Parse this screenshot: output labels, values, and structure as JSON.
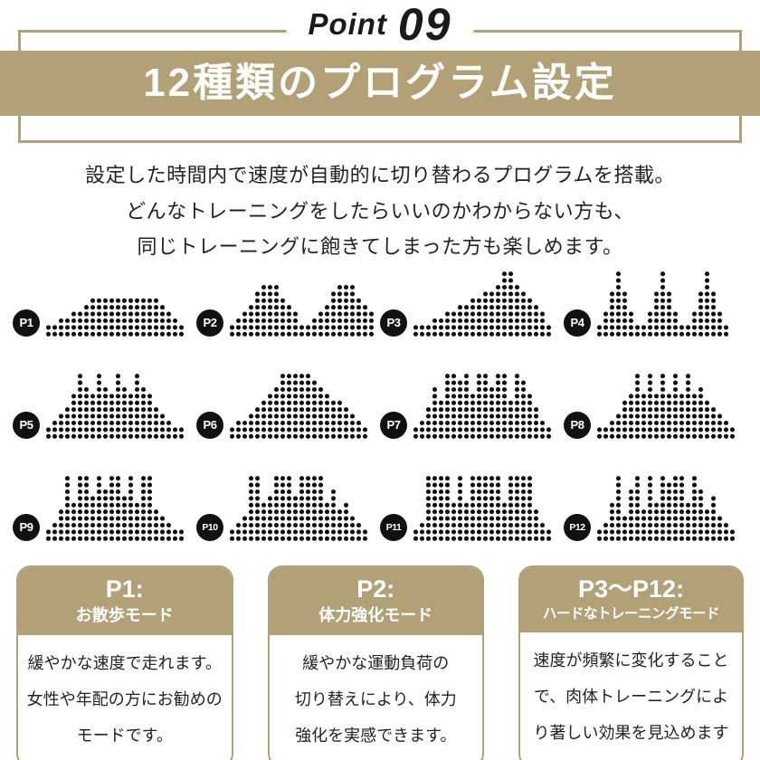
{
  "colors": {
    "accent": "#b2a177",
    "ink": "#111111"
  },
  "header": {
    "point_label": "Point",
    "point_number": "09",
    "banner_title": "12種類のプログラム設定"
  },
  "intro": {
    "lines": [
      "設定した時間内で速度が自動的に切り替わるプログラムを搭載。",
      "どんなトレーニングをしたらいいのかわからない方も、",
      "同じトレーニングに飽きてしまった方も楽しめます。"
    ]
  },
  "programs": [
    {
      "id": "P1",
      "heights": [
        2,
        2,
        3,
        3,
        4,
        4,
        5,
        6,
        6,
        6,
        6,
        6,
        6,
        6,
        6,
        6,
        6,
        6,
        5,
        4,
        3,
        2
      ]
    },
    {
      "id": "P2",
      "heights": [
        2,
        3,
        4,
        5,
        7,
        8,
        8,
        8,
        6,
        5,
        4,
        2,
        2,
        3,
        4,
        5,
        7,
        8,
        8,
        8,
        6,
        5,
        4
      ]
    },
    {
      "id": "P3",
      "heights": [
        2,
        2,
        2,
        3,
        3,
        4,
        4,
        5,
        5,
        6,
        6,
        7,
        7,
        8,
        10,
        10,
        8,
        7,
        6,
        5,
        4,
        2
      ]
    },
    {
      "id": "P4",
      "heights": [
        2,
        4,
        7,
        10,
        7,
        4,
        2,
        2,
        4,
        7,
        10,
        7,
        4,
        2,
        2,
        4,
        7,
        10,
        7,
        4,
        2
      ]
    },
    {
      "id": "P5",
      "heights": [
        2,
        3,
        4,
        5,
        7,
        10,
        8,
        7,
        10,
        8,
        7,
        10,
        8,
        7,
        10,
        8,
        7,
        5,
        4,
        3,
        2,
        2
      ]
    },
    {
      "id": "P6",
      "heights": [
        2,
        3,
        3,
        4,
        5,
        6,
        7,
        8,
        10,
        10,
        10,
        10,
        10,
        9,
        8,
        7,
        6,
        6,
        5,
        4,
        3,
        2
      ]
    },
    {
      "id": "P7",
      "heights": [
        2,
        3,
        5,
        8,
        6,
        10,
        10,
        9,
        10,
        7,
        10,
        10,
        8,
        10,
        10,
        6,
        10,
        9,
        7,
        5,
        3,
        2
      ]
    },
    {
      "id": "P8",
      "heights": [
        2,
        2,
        3,
        4,
        6,
        7,
        10,
        7,
        10,
        7,
        10,
        7,
        10,
        7,
        10,
        7,
        8,
        6,
        5,
        4,
        3,
        2
      ]
    },
    {
      "id": "P9",
      "heights": [
        2,
        3,
        5,
        10,
        6,
        10,
        10,
        7,
        10,
        8,
        10,
        10,
        7,
        10,
        6,
        10,
        10,
        5,
        4,
        3,
        2,
        2
      ]
    },
    {
      "id": "P10",
      "heights": [
        2,
        3,
        4,
        10,
        10,
        6,
        7,
        10,
        10,
        10,
        7,
        10,
        10,
        10,
        10,
        6,
        8,
        5,
        6,
        4,
        3,
        2
      ]
    },
    {
      "id": "P11",
      "heights": [
        2,
        3,
        10,
        10,
        10,
        10,
        6,
        10,
        6,
        10,
        10,
        10,
        10,
        10,
        6,
        10,
        10,
        10,
        10,
        5,
        3,
        2
      ]
    },
    {
      "id": "P12",
      "heights": [
        2,
        3,
        6,
        10,
        4,
        8,
        10,
        5,
        10,
        6,
        10,
        9,
        10,
        10,
        6,
        10,
        8,
        5,
        7,
        4,
        3,
        2
      ]
    }
  ],
  "cards": [
    {
      "title": "P1:",
      "subtitle": "お散歩モード",
      "body_lines": [
        "緩やかな速度で走れます。",
        "女性や年配の方にお勧めの",
        "モードです。"
      ]
    },
    {
      "title": "P2:",
      "subtitle": "体力強化モード",
      "body_lines": [
        "緩やかな運動負荷の",
        "切り替えにより、体力",
        "強化を実感できます。"
      ]
    },
    {
      "title": "P3〜P12:",
      "subtitle": "ハードなトレーニングモード",
      "body_lines": [
        "速度が頻繁に変化すること",
        "で、肉体トレーニングによ",
        "り著しい効果を見込めます"
      ]
    }
  ]
}
